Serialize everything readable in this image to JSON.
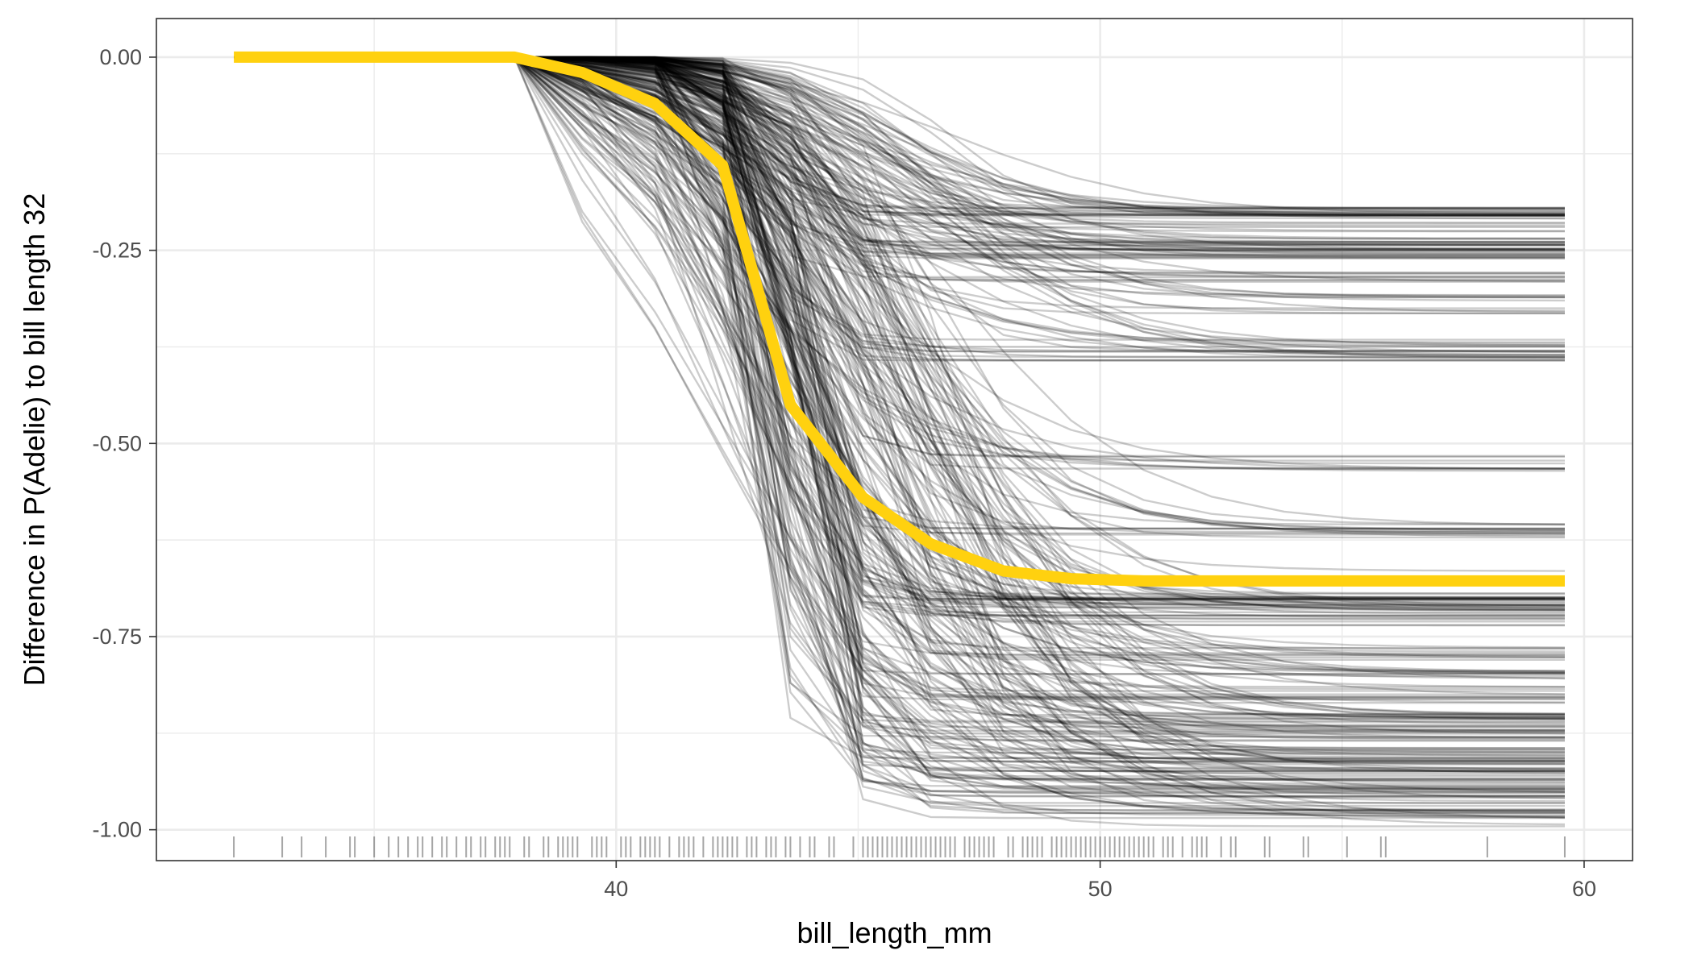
{
  "chart_data": {
    "type": "line",
    "title": "",
    "xlabel": "bill_length_mm",
    "ylabel": "Difference in P(Adelie) to bill length 32",
    "xlim": [
      30.5,
      61.0
    ],
    "ylim": [
      -1.04,
      0.05
    ],
    "x_ticks": [
      40,
      50,
      60
    ],
    "x_tick_labels": [
      "40",
      "50",
      "60"
    ],
    "y_ticks": [
      0.0,
      -0.25,
      -0.5,
      -0.75,
      -1.0
    ],
    "y_tick_labels": [
      "0.00",
      "-0.25",
      "-0.50",
      "-0.75",
      "-1.00"
    ],
    "grid": true,
    "theme": "bw",
    "colors": {
      "ice_lines": "#000000",
      "average_line": "#ffd10f",
      "rug": "#000000",
      "grid": "#ebebeb",
      "panel_border": "#333333"
    },
    "x": [
      32.1,
      33.5,
      35.0,
      36.4,
      37.9,
      39.3,
      40.8,
      42.2,
      43.6,
      45.1,
      46.5,
      48.0,
      49.4,
      50.9,
      52.3,
      53.8,
      55.2,
      56.7,
      58.1,
      59.6
    ],
    "series": [
      {
        "values": [
          0,
          0,
          0,
          0,
          0,
          -0.02,
          -0.06,
          -0.14,
          -0.45,
          -0.57,
          -0.63,
          -0.665,
          -0.675,
          -0.678,
          -0.678,
          -0.678,
          -0.678,
          -0.678,
          -0.678,
          -0.678
        ],
        "style": "average"
      }
    ],
    "ice_lines": {
      "count": 333,
      "values_at_x_max": [
        -0.2,
        -0.21,
        -0.22,
        -0.24,
        -0.25,
        -0.26,
        -0.285,
        -0.31,
        -0.33,
        -0.37,
        -0.385,
        -0.39,
        -0.52,
        -0.53,
        -0.61,
        -0.62,
        -0.67,
        -0.7,
        -0.71,
        -0.72,
        -0.73,
        -0.77,
        -0.78,
        -0.8,
        -0.82,
        -0.83,
        -0.85,
        -0.86,
        -0.87,
        -0.88,
        -0.9,
        -0.91,
        -0.92,
        -0.93,
        -0.94,
        -0.95,
        -0.96,
        -0.97,
        -0.98,
        -0.99
      ]
    },
    "rug_x": [
      32.1,
      33.1,
      33.5,
      34.0,
      34.5,
      34.6,
      35.0,
      35.3,
      35.5,
      35.7,
      35.9,
      36.0,
      36.2,
      36.4,
      36.5,
      36.7,
      36.9,
      37.0,
      37.2,
      37.3,
      37.5,
      37.6,
      37.7,
      37.8,
      38.1,
      38.2,
      38.5,
      38.6,
      38.8,
      38.9,
      39.0,
      39.1,
      39.2,
      39.5,
      39.6,
      39.7,
      39.8,
      40.1,
      40.2,
      40.3,
      40.5,
      40.6,
      40.7,
      40.8,
      40.9,
      41.1,
      41.3,
      41.4,
      41.5,
      41.6,
      41.8,
      42.0,
      42.1,
      42.2,
      42.3,
      42.4,
      42.5,
      42.7,
      42.8,
      42.9,
      43.1,
      43.2,
      43.3,
      43.5,
      43.6,
      43.8,
      44.0,
      44.1,
      44.4,
      44.5,
      44.9,
      45.1,
      45.2,
      45.3,
      45.4,
      45.5,
      45.6,
      45.7,
      45.8,
      45.9,
      46.0,
      46.1,
      46.2,
      46.3,
      46.4,
      46.5,
      46.6,
      46.7,
      46.8,
      46.9,
      47.0,
      47.2,
      47.3,
      47.4,
      47.5,
      47.6,
      47.7,
      47.8,
      48.1,
      48.2,
      48.4,
      48.5,
      48.6,
      48.7,
      48.8,
      49.0,
      49.1,
      49.2,
      49.3,
      49.4,
      49.5,
      49.6,
      49.7,
      49.8,
      49.9,
      50.0,
      50.1,
      50.2,
      50.3,
      50.4,
      50.5,
      50.6,
      50.7,
      50.8,
      50.9,
      51.0,
      51.1,
      51.3,
      51.4,
      51.5,
      51.7,
      51.9,
      52.0,
      52.1,
      52.2,
      52.5,
      52.7,
      52.8,
      53.4,
      53.5,
      54.2,
      54.3,
      55.1,
      55.8,
      55.9,
      58.0,
      59.6
    ]
  }
}
